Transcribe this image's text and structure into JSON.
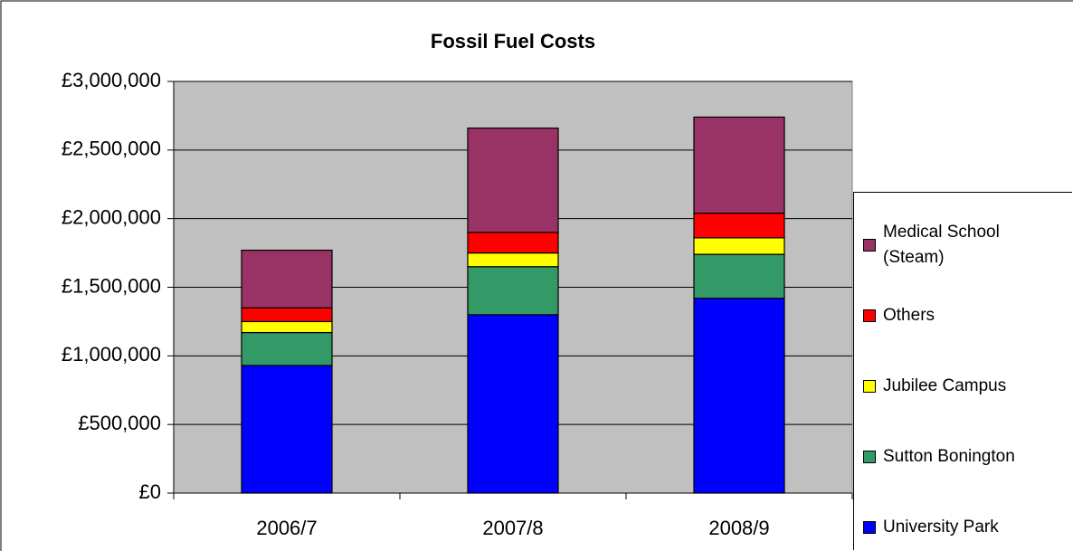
{
  "chart_data": {
    "type": "stacked-bar",
    "title": "Fossil Fuel Costs",
    "categories": [
      "2006/7",
      "2007/8",
      "2008/9"
    ],
    "series": [
      {
        "name": "University Park",
        "color": "#0000ff",
        "values": [
          930000,
          1300000,
          1420000
        ]
      },
      {
        "name": "Sutton Bonington",
        "color": "#339966",
        "values": [
          240000,
          350000,
          320000
        ]
      },
      {
        "name": "Jubilee Campus",
        "color": "#ffff00",
        "values": [
          80000,
          100000,
          120000
        ]
      },
      {
        "name": "Others",
        "color": "#ff0000",
        "values": [
          100000,
          150000,
          180000
        ]
      },
      {
        "name": "Medical School (Steam)",
        "color": "#993366",
        "values": [
          420000,
          760000,
          700000
        ]
      }
    ],
    "ylim": [
      0,
      3000000
    ],
    "yticks": [
      {
        "value": 0,
        "label": "£0"
      },
      {
        "value": 500000,
        "label": "£500,000"
      },
      {
        "value": 1000000,
        "label": "£1,000,000"
      },
      {
        "value": 1500000,
        "label": "£1,500,000"
      },
      {
        "value": 2000000,
        "label": "£2,000,000"
      },
      {
        "value": 2500000,
        "label": "£2,500,000"
      },
      {
        "value": 3000000,
        "label": "£3,000,000"
      }
    ],
    "grid": true,
    "plot_background": "#c0c0c0",
    "legend": "right"
  }
}
